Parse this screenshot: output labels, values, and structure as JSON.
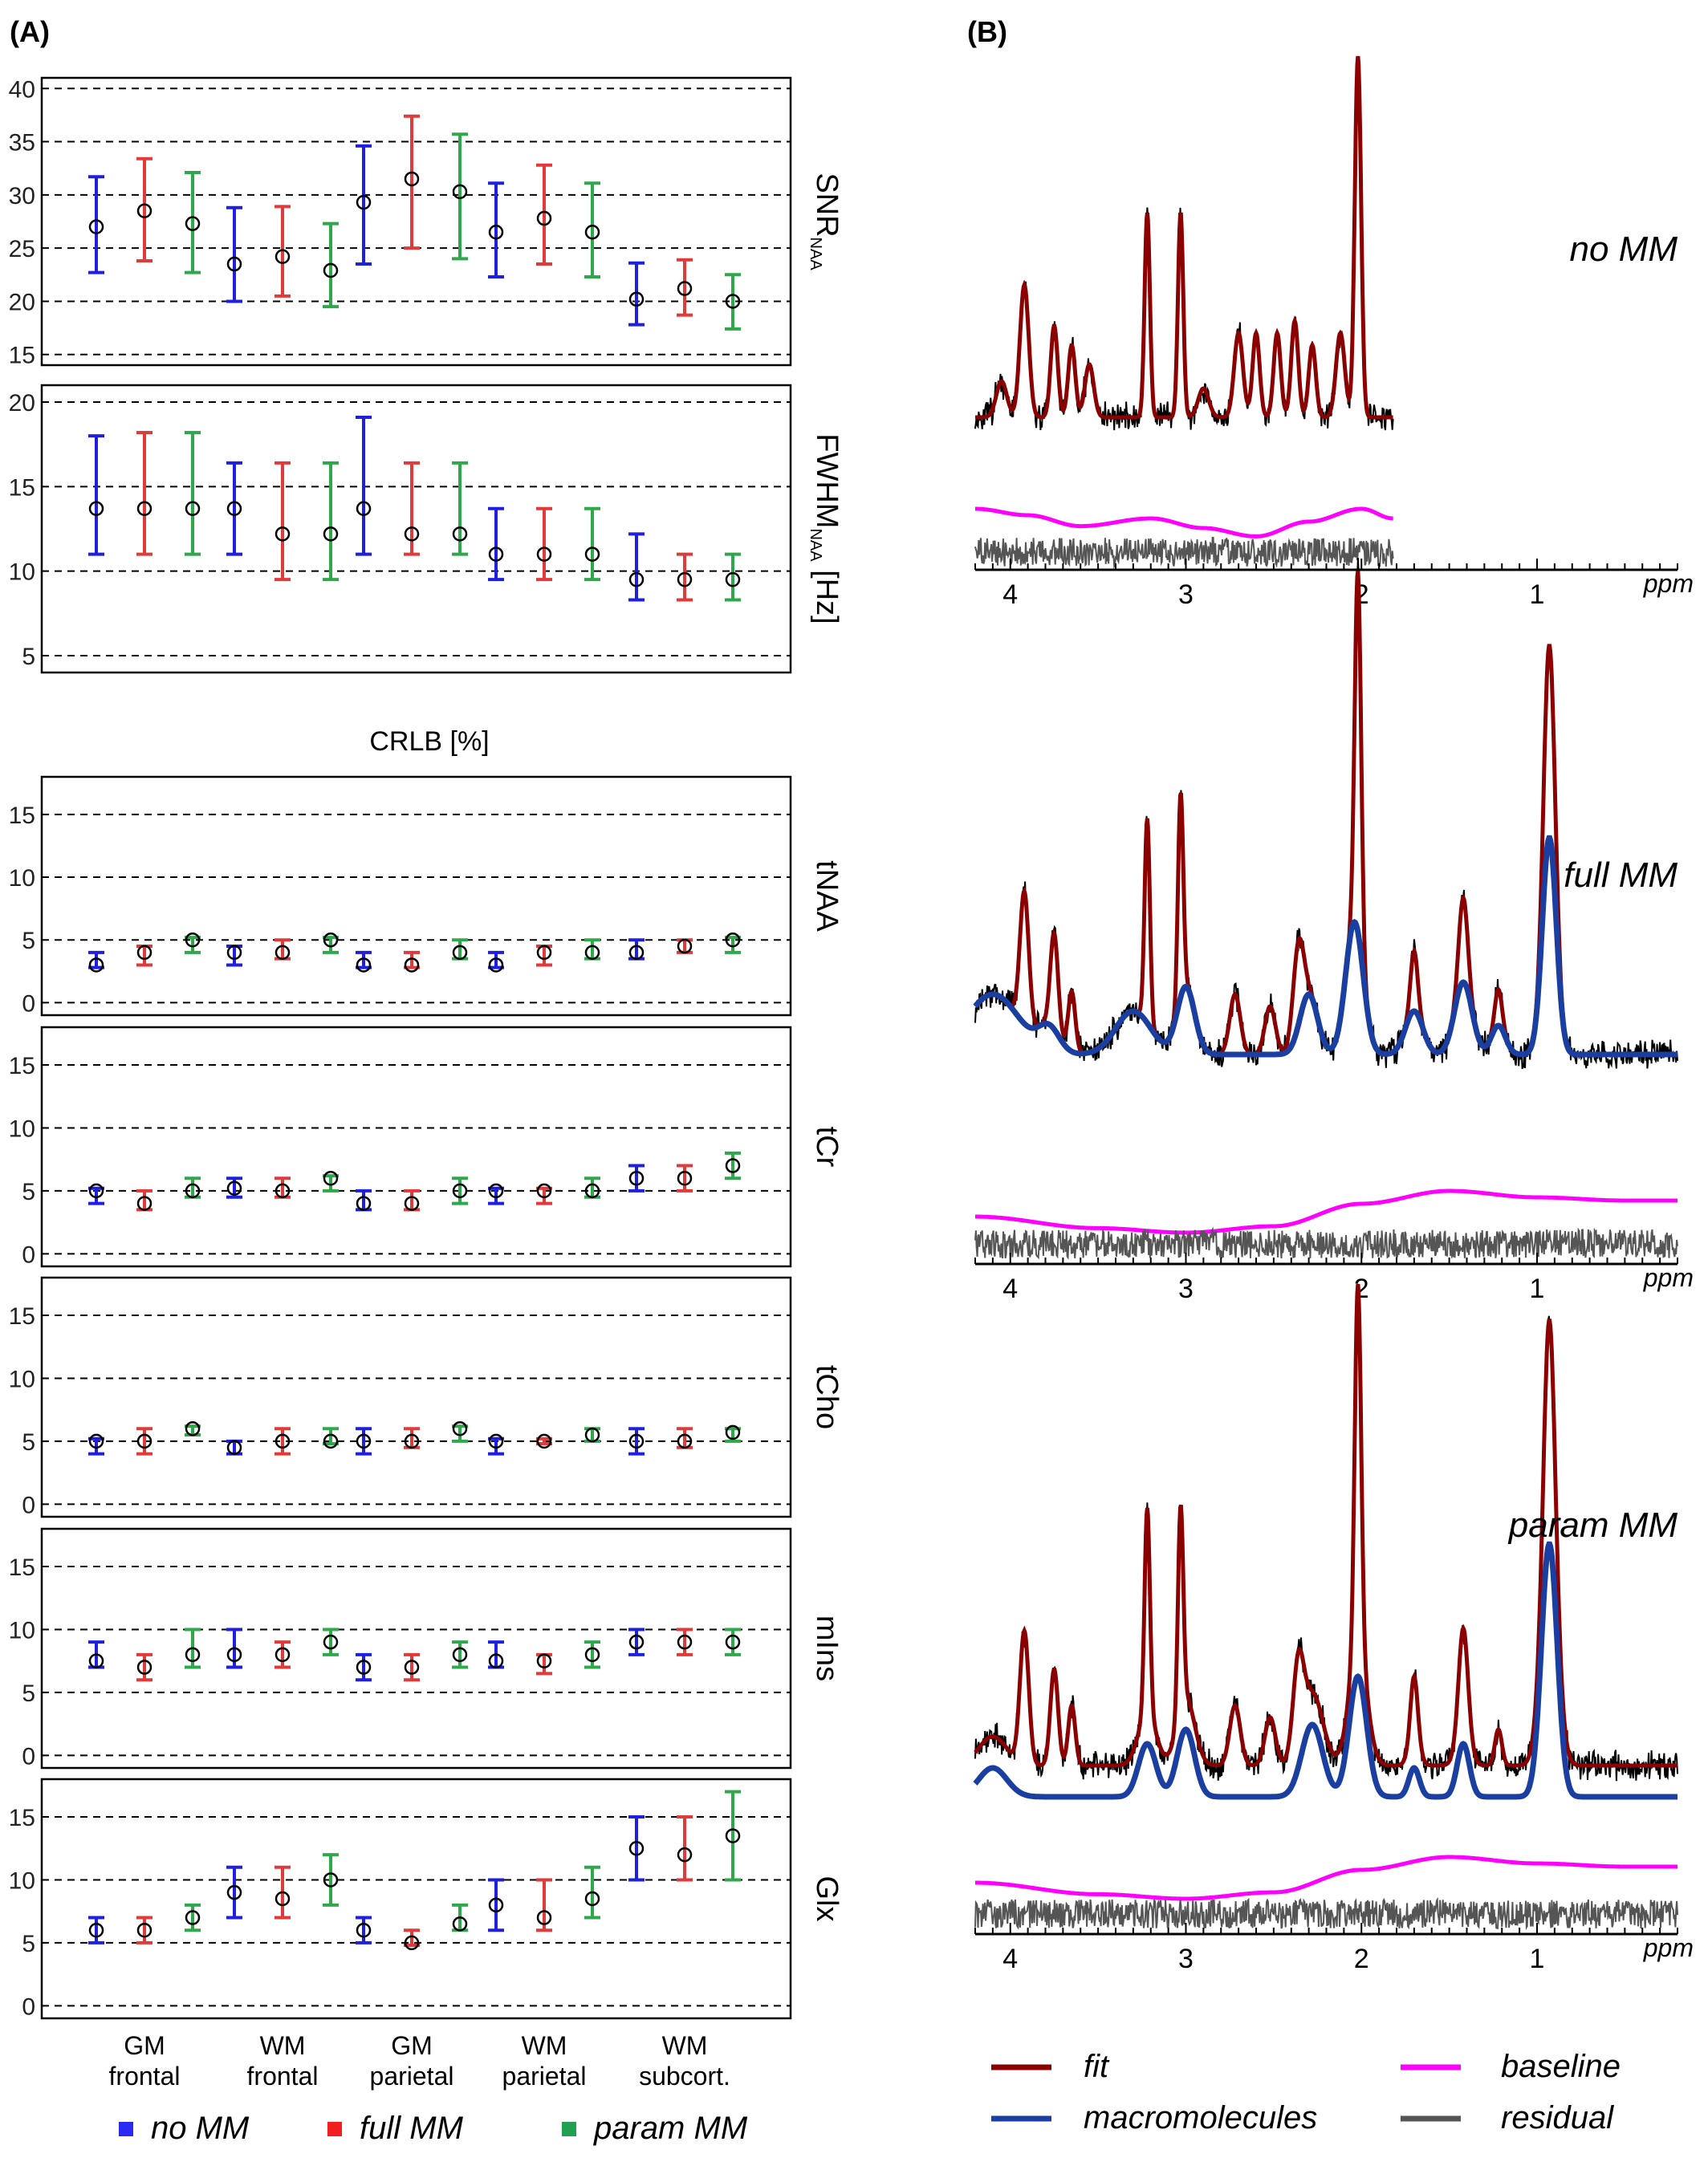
{
  "panel_a_label": "(A)",
  "panel_b_label": "(B)",
  "crlb_heading": "CRLB [%]",
  "categories": [
    "GM frontal",
    "WM frontal",
    "GM parietal",
    "WM parietal",
    "WM subcort."
  ],
  "colors": {
    "no_mm": "#1f1fe0",
    "full_mm": "#e03a3a",
    "param_mm": "#2ea84a",
    "fit": "#8b0000",
    "macromolecules": "#1a3fa0",
    "baseline": "#ff00ff",
    "residual": "#555555",
    "spectrum": "#000000"
  },
  "legend_a": [
    {
      "label": "no MM",
      "color": "#2a2af0"
    },
    {
      "label": "full MM",
      "color": "#f02020"
    },
    {
      "label": "param MM",
      "color": "#20a050"
    }
  ],
  "legend_b": [
    {
      "label": "fit",
      "color": "#8b0000"
    },
    {
      "label": "baseline",
      "color": "#ff00ff"
    },
    {
      "label": "macromolecules",
      "color": "#1a3fa0"
    },
    {
      "label": "residual",
      "color": "#555555"
    }
  ],
  "chart_data": [
    {
      "type": "errorbar",
      "ylabel": "SNR",
      "ylabel_sub": "NAA",
      "ylim": [
        14,
        41
      ],
      "yticks": [
        15,
        20,
        25,
        30,
        35,
        40
      ],
      "categories": [
        "GM frontal",
        "WM frontal",
        "GM parietal",
        "WM parietal",
        "WM subcort."
      ],
      "series": [
        {
          "name": "no MM",
          "mean": [
            27,
            23.5,
            29.3,
            26.5,
            20.2
          ],
          "low": [
            22.7,
            20,
            23.5,
            22.3,
            17.8
          ],
          "high": [
            31.7,
            28.8,
            34.6,
            31.1,
            23.6
          ]
        },
        {
          "name": "full MM",
          "mean": [
            28.5,
            24.2,
            31.5,
            27.8,
            21.2
          ],
          "low": [
            23.8,
            20.5,
            25,
            23.5,
            18.7
          ],
          "high": [
            33.4,
            28.9,
            37.4,
            32.8,
            23.9
          ]
        },
        {
          "name": "param MM",
          "mean": [
            27.3,
            22.9,
            30.3,
            26.5,
            20
          ],
          "low": [
            22.7,
            19.5,
            24,
            22.3,
            17.4
          ],
          "high": [
            32.1,
            27.3,
            35.7,
            31.1,
            22.5
          ]
        }
      ]
    },
    {
      "type": "errorbar",
      "ylabel": "FWHM",
      "ylabel_sub": "NAA",
      "ylabel_suffix": " [Hz]",
      "ylim": [
        4,
        21
      ],
      "yticks": [
        5,
        10,
        15,
        20
      ],
      "categories": [
        "GM frontal",
        "WM frontal",
        "GM parietal",
        "WM parietal",
        "WM subcort."
      ],
      "series": [
        {
          "name": "no MM",
          "mean": [
            13.7,
            13.7,
            13.7,
            11,
            9.5
          ],
          "low": [
            11,
            11,
            11,
            9.5,
            8.3
          ],
          "high": [
            18,
            16.4,
            19.1,
            13.7,
            12.2
          ]
        },
        {
          "name": "full MM",
          "mean": [
            13.7,
            12.2,
            12.2,
            11,
            9.5
          ],
          "low": [
            11,
            9.5,
            11,
            9.5,
            8.3
          ],
          "high": [
            18.2,
            16.4,
            16.4,
            13.7,
            11
          ]
        },
        {
          "name": "param MM",
          "mean": [
            13.7,
            12.2,
            12.2,
            11,
            9.5
          ],
          "low": [
            11,
            9.5,
            11,
            9.5,
            8.3
          ],
          "high": [
            18.2,
            16.4,
            16.4,
            13.7,
            11
          ]
        }
      ]
    },
    {
      "type": "errorbar",
      "ylabel": "tNAA",
      "ylim": [
        -1,
        18
      ],
      "yticks": [
        0,
        5,
        10,
        15
      ],
      "categories": [
        "GM frontal",
        "WM frontal",
        "GM parietal",
        "WM parietal",
        "WM subcort."
      ],
      "series": [
        {
          "name": "no MM",
          "mean": [
            3,
            4,
            3,
            3,
            4
          ],
          "low": [
            2.8,
            3,
            2.8,
            2.8,
            3.5
          ],
          "high": [
            4,
            4.5,
            4,
            4,
            5
          ]
        },
        {
          "name": "full MM",
          "mean": [
            4,
            4,
            3,
            4,
            4.5
          ],
          "low": [
            3,
            3.5,
            2.8,
            3,
            4
          ],
          "high": [
            4.5,
            5,
            4,
            4.5,
            5
          ]
        },
        {
          "name": "param MM",
          "mean": [
            5,
            5,
            4,
            4,
            5
          ],
          "low": [
            4,
            4,
            3.5,
            3.5,
            4
          ],
          "high": [
            5.2,
            5.2,
            5,
            5,
            5.2
          ]
        }
      ]
    },
    {
      "type": "errorbar",
      "ylabel": "tCr",
      "ylim": [
        -1,
        18
      ],
      "yticks": [
        0,
        5,
        10,
        15
      ],
      "categories": [
        "GM frontal",
        "WM frontal",
        "GM parietal",
        "WM parietal",
        "WM subcort."
      ],
      "series": [
        {
          "name": "no MM",
          "mean": [
            5,
            5.2,
            4,
            5,
            6
          ],
          "low": [
            4,
            4.5,
            3.5,
            4,
            5
          ],
          "high": [
            5.2,
            6,
            5,
            5.2,
            7
          ]
        },
        {
          "name": "full MM",
          "mean": [
            4,
            5,
            4,
            5,
            6
          ],
          "low": [
            3.5,
            4.5,
            3.5,
            4,
            5
          ],
          "high": [
            5,
            6,
            5,
            5.2,
            7
          ]
        },
        {
          "name": "param MM",
          "mean": [
            5,
            6,
            5,
            5,
            7
          ],
          "low": [
            4.5,
            5,
            4,
            4.5,
            6
          ],
          "high": [
            6,
            6.2,
            6,
            6,
            8
          ]
        }
      ]
    },
    {
      "type": "errorbar",
      "ylabel": "tCho",
      "ylim": [
        -1,
        18
      ],
      "yticks": [
        0,
        5,
        10,
        15
      ],
      "categories": [
        "GM frontal",
        "WM frontal",
        "GM parietal",
        "WM parietal",
        "WM subcort."
      ],
      "series": [
        {
          "name": "no MM",
          "mean": [
            5,
            4.5,
            5,
            5,
            5
          ],
          "low": [
            4,
            4,
            4,
            4,
            4
          ],
          "high": [
            5.2,
            5,
            6,
            5.2,
            6
          ]
        },
        {
          "name": "full MM",
          "mean": [
            5,
            5,
            5,
            5,
            5
          ],
          "low": [
            4,
            4,
            4.5,
            4.8,
            4.5
          ],
          "high": [
            6,
            6,
            6,
            5.2,
            6
          ]
        },
        {
          "name": "param MM",
          "mean": [
            6,
            5,
            6,
            5.5,
            5.7
          ],
          "low": [
            5.5,
            4.8,
            5,
            5,
            5
          ],
          "high": [
            6.2,
            6,
            6.2,
            6,
            6
          ]
        }
      ]
    },
    {
      "type": "errorbar",
      "ylabel": "mIns",
      "ylim": [
        -1,
        18
      ],
      "yticks": [
        0,
        5,
        10,
        15
      ],
      "categories": [
        "GM frontal",
        "WM frontal",
        "GM parietal",
        "WM parietal",
        "WM subcort."
      ],
      "series": [
        {
          "name": "no MM",
          "mean": [
            7.5,
            8,
            7,
            7.5,
            9
          ],
          "low": [
            7,
            7,
            6,
            7,
            8
          ],
          "high": [
            9,
            10,
            8,
            9,
            10
          ]
        },
        {
          "name": "full MM",
          "mean": [
            7,
            8,
            7,
            7.5,
            9
          ],
          "low": [
            6,
            7,
            6,
            6.5,
            8
          ],
          "high": [
            8,
            9,
            8,
            8,
            10
          ]
        },
        {
          "name": "param MM",
          "mean": [
            8,
            9,
            8,
            8,
            9
          ],
          "low": [
            7,
            8,
            7,
            7,
            8
          ],
          "high": [
            10,
            10,
            9,
            9,
            10
          ]
        }
      ]
    },
    {
      "type": "errorbar",
      "ylabel": "Glx",
      "ylim": [
        -1,
        18
      ],
      "yticks": [
        0,
        5,
        10,
        15
      ],
      "categories": [
        "GM frontal",
        "WM frontal",
        "GM parietal",
        "WM parietal",
        "WM subcort."
      ],
      "series": [
        {
          "name": "no MM",
          "mean": [
            6,
            9,
            6,
            8,
            12.5
          ],
          "low": [
            5,
            7,
            5,
            6,
            10
          ],
          "high": [
            7,
            11,
            7,
            10,
            15
          ]
        },
        {
          "name": "full MM",
          "mean": [
            6,
            8.5,
            5,
            7,
            12
          ],
          "low": [
            5,
            7,
            4.8,
            6,
            10
          ],
          "high": [
            7,
            11,
            6,
            10,
            15
          ]
        },
        {
          "name": "param MM",
          "mean": [
            7,
            10,
            6.5,
            8.5,
            13.5
          ],
          "low": [
            6,
            8,
            6,
            7,
            10
          ],
          "high": [
            8,
            12,
            8,
            11,
            17
          ]
        }
      ]
    },
    {
      "type": "line",
      "title": "no MM",
      "xlabel": "ppm",
      "xlim": [
        4.2,
        0.2
      ],
      "xticks": [
        4,
        3,
        2,
        1
      ],
      "peaks": [
        [
          4.05,
          0.15,
          0.03
        ],
        [
          3.92,
          0.55,
          0.025
        ],
        [
          3.75,
          0.38,
          0.02
        ],
        [
          3.65,
          0.3,
          0.02
        ],
        [
          3.55,
          0.22,
          0.025
        ],
        [
          3.22,
          0.85,
          0.015
        ],
        [
          3.03,
          0.85,
          0.015
        ],
        [
          2.9,
          0.12,
          0.03
        ],
        [
          2.7,
          0.35,
          0.025
        ],
        [
          2.6,
          0.35,
          0.02
        ],
        [
          2.48,
          0.35,
          0.02
        ],
        [
          2.38,
          0.4,
          0.02
        ],
        [
          2.28,
          0.3,
          0.02
        ],
        [
          2.12,
          0.35,
          0.025
        ],
        [
          2.02,
          1.5,
          0.018
        ]
      ],
      "series": [
        {
          "name": "spectrum",
          "x_range": [
            4.2,
            1.82
          ]
        },
        {
          "name": "fit",
          "x_range": [
            4.2,
            1.82
          ]
        },
        {
          "name": "baseline",
          "x_range": [
            4.2,
            1.82
          ],
          "nodes": [
            [
              4.2,
              0.05
            ],
            [
              3.9,
              0.15
            ],
            [
              3.6,
              0.32
            ],
            [
              3.2,
              0.2
            ],
            [
              2.9,
              0.35
            ],
            [
              2.6,
              0.48
            ],
            [
              2.3,
              0.25
            ],
            [
              2,
              0.05
            ],
            [
              1.82,
              0.2
            ]
          ]
        },
        {
          "name": "residual",
          "x_range": [
            4.2,
            1.82
          ]
        }
      ]
    },
    {
      "type": "line",
      "title": "full MM",
      "xlabel": "ppm",
      "xlim": [
        4.2,
        0.2
      ],
      "xticks": [
        4,
        3,
        2,
        1
      ],
      "peaks": [
        [
          3.92,
          0.55,
          0.025
        ],
        [
          3.75,
          0.4,
          0.022
        ],
        [
          3.65,
          0.25,
          0.02
        ],
        [
          3.22,
          0.85,
          0.015
        ],
        [
          3.03,
          0.85,
          0.015
        ],
        [
          2.72,
          0.25,
          0.03
        ],
        [
          2.52,
          0.2,
          0.03
        ],
        [
          2.36,
          0.35,
          0.03
        ],
        [
          2.02,
          1.5,
          0.018
        ],
        [
          1.7,
          0.25,
          0.02
        ],
        [
          1.42,
          0.35,
          0.025
        ],
        [
          1.22,
          0.15,
          0.02
        ],
        [
          0.93,
          0.8,
          0.03
        ]
      ],
      "series": [
        {
          "name": "spectrum",
          "x_range": [
            4.2,
            0.2
          ]
        },
        {
          "name": "fit",
          "x_range": [
            4.2,
            0.2
          ]
        },
        {
          "name": "macromolecules",
          "x_range": [
            4.2,
            0.2
          ]
        },
        {
          "name": "baseline",
          "x_range": [
            4.2,
            0.2
          ],
          "nodes": [
            [
              4.2,
              0.2
            ],
            [
              3.5,
              0.38
            ],
            [
              3,
              0.45
            ],
            [
              2.5,
              0.35
            ],
            [
              2,
              0
            ],
            [
              1.5,
              -0.2
            ],
            [
              1,
              -0.1
            ],
            [
              0.5,
              -0.05
            ],
            [
              0.2,
              -0.05
            ]
          ]
        },
        {
          "name": "residual",
          "x_range": [
            4.2,
            0.2
          ]
        }
      ]
    },
    {
      "type": "line",
      "title": "param MM",
      "xlabel": "ppm",
      "xlim": [
        4.2,
        0.2
      ],
      "xticks": [
        4,
        3,
        2,
        1
      ],
      "peaks": [
        [
          3.92,
          0.55,
          0.025
        ],
        [
          3.75,
          0.4,
          0.022
        ],
        [
          3.65,
          0.25,
          0.02
        ],
        [
          3.22,
          0.85,
          0.015
        ],
        [
          3.03,
          0.85,
          0.015
        ],
        [
          2.72,
          0.25,
          0.03
        ],
        [
          2.52,
          0.2,
          0.03
        ],
        [
          2.36,
          0.35,
          0.03
        ],
        [
          2.02,
          1.5,
          0.018
        ],
        [
          1.7,
          0.25,
          0.02
        ],
        [
          1.42,
          0.35,
          0.025
        ],
        [
          1.22,
          0.15,
          0.02
        ],
        [
          0.93,
          0.8,
          0.03
        ]
      ],
      "series": [
        {
          "name": "spectrum",
          "x_range": [
            4.2,
            0.2
          ]
        },
        {
          "name": "fit",
          "x_range": [
            4.2,
            0.2
          ]
        },
        {
          "name": "macromolecules",
          "x_range": [
            4.2,
            0.2
          ]
        },
        {
          "name": "baseline",
          "x_range": [
            4.2,
            0.2
          ],
          "nodes": [
            [
              4.2,
              0.2
            ],
            [
              3.5,
              0.38
            ],
            [
              3,
              0.45
            ],
            [
              2.5,
              0.35
            ],
            [
              2,
              0
            ],
            [
              1.5,
              -0.2
            ],
            [
              1,
              -0.1
            ],
            [
              0.5,
              -0.05
            ],
            [
              0.2,
              -0.05
            ]
          ]
        },
        {
          "name": "residual",
          "x_range": [
            4.2,
            0.2
          ]
        }
      ]
    }
  ]
}
